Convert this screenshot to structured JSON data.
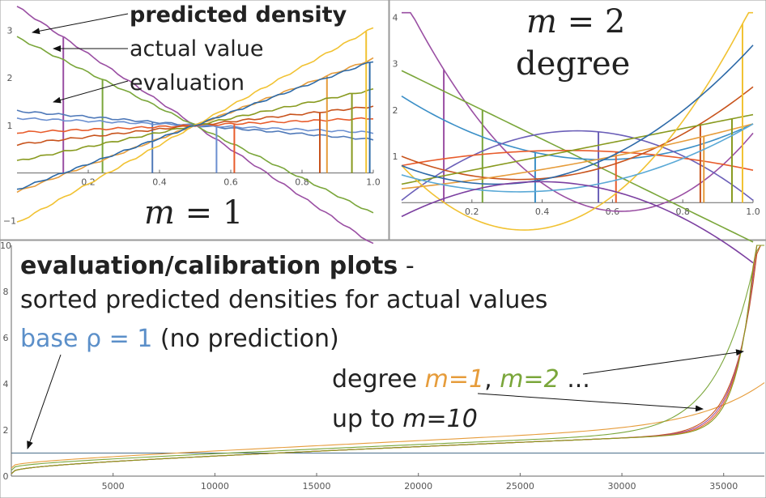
{
  "chart_data": [
    {
      "type": "line",
      "title": "m = 1",
      "title_var": "m",
      "title_rest": " = 1",
      "xlim": [
        0,
        1
      ],
      "ylim": [
        -1.3,
        3.6
      ],
      "xticks": [
        "0.2",
        "0.4",
        "0.6",
        "0.8",
        "1.0"
      ],
      "yticks": [
        "−1",
        "1",
        "2",
        "3"
      ],
      "annotations": [
        "predicted density",
        "actual value",
        "evaluation"
      ],
      "series": [
        {
          "color": "#9a4fa3",
          "x": [
            0,
            1
          ],
          "y": [
            3.5,
            -1.5
          ],
          "actual": 0.13
        },
        {
          "color": "#7aa63a",
          "x": [
            0,
            1
          ],
          "y": [
            2.85,
            -0.85
          ],
          "actual": 0.24
        },
        {
          "color": "#4f79b9",
          "x": [
            0,
            1
          ],
          "y": [
            1.3,
            0.7
          ],
          "actual": 0.38
        },
        {
          "color": "#6b8fd0",
          "x": [
            0,
            1
          ],
          "y": [
            1.15,
            0.85
          ],
          "actual": 0.56
        },
        {
          "color": "#e85c2c",
          "x": [
            0,
            1
          ],
          "y": [
            0.85,
            1.15
          ],
          "actual": 0.61
        },
        {
          "color": "#c8531c",
          "x": [
            0,
            1
          ],
          "y": [
            0.6,
            1.4
          ],
          "actual": 0.85
        },
        {
          "color": "#e69c3b",
          "x": [
            0,
            1
          ],
          "y": [
            -0.4,
            2.4
          ],
          "actual": 0.87
        },
        {
          "color": "#889a1f",
          "x": [
            0,
            1
          ],
          "y": [
            0.25,
            1.75
          ],
          "actual": 0.94
        },
        {
          "color": "#f1c232",
          "x": [
            0,
            1
          ],
          "y": [
            -1.05,
            3.05
          ],
          "actual": 0.98
        },
        {
          "color": "#2d6aa8",
          "x": [
            0,
            1
          ],
          "y": [
            -0.35,
            2.35
          ],
          "actual": 0.99
        }
      ]
    },
    {
      "type": "line",
      "title_line1": "m = 2",
      "title_var": "m",
      "title_rest": " = 2",
      "title_line2": "degree",
      "xlim": [
        0,
        1
      ],
      "ylim": [
        -0.8,
        4.2
      ],
      "xticks": [
        "0.2",
        "0.4",
        "0.6",
        "0.8",
        "1.0"
      ],
      "yticks": [
        "1",
        "2",
        "3",
        "4"
      ],
      "series": [
        {
          "color": "#9a4fa3",
          "coef": [
            4.5,
            -15,
            12
          ],
          "actual": 0.12
        },
        {
          "color": "#7aa63a",
          "coef": [
            2.85,
            -3.7,
            0
          ],
          "actual": 0.23
        },
        {
          "color": "#3b8fc7",
          "coef": [
            2.3,
            -4.8,
            4.2
          ],
          "actual": 0.38
        },
        {
          "color": "#6b5fb8",
          "coef": [
            0.05,
            6,
            -6
          ],
          "actual": 0.56
        },
        {
          "color": "#e85c2c",
          "coef": [
            0.8,
            1.4,
            -1.5
          ],
          "actual": 0.61
        },
        {
          "color": "#c8531c",
          "coef": [
            1.0,
            -3,
            4.5
          ],
          "actual": 0.85
        },
        {
          "color": "#e69c3b",
          "coef": [
            0.3,
            0.8,
            0.6
          ],
          "actual": 0.86
        },
        {
          "color": "#889a1f",
          "coef": [
            0.4,
            1.5,
            0
          ],
          "actual": 0.94
        },
        {
          "color": "#f1c232",
          "coef": [
            0.8,
            -8,
            11.5
          ],
          "actual": 0.97
        },
        {
          "color": "#2d6aa8",
          "coef": [
            0.8,
            -3,
            5.6
          ],
          "actual": 0.0
        },
        {
          "color": "#5aa9d6",
          "coef": [
            0.6,
            -2.2,
            3.3
          ],
          "actual": 0.0
        },
        {
          "color": "#7b3fa0",
          "coef": [
            -0.3,
            3.8,
            -4.8
          ],
          "actual": 0.0
        }
      ]
    },
    {
      "type": "line",
      "title": "evaluation/calibration plots",
      "title_suffix": " -",
      "subtitle": "sorted predicted densities for actual values",
      "xlim": [
        0,
        37000
      ],
      "ylim": [
        0,
        10
      ],
      "xticks": [
        "5000",
        "10000",
        "15000",
        "20000",
        "25000",
        "30000",
        "35000"
      ],
      "yticks": [
        "0",
        "2",
        "4",
        "6",
        "8",
        "10"
      ],
      "labels": {
        "base": "base ρ = 1",
        "base_rest": " (no prediction)",
        "degree_word": "degree ",
        "m1": "m=1",
        "comma": ", ",
        "m2": "m=2",
        "ellipsis": " ...",
        "upto": "up to ",
        "m10": "m=10"
      },
      "colors": {
        "base": "#5b8fc9",
        "m1": "#e69c3b",
        "m2": "#7aa63a",
        "dark": "#222222"
      },
      "series": [
        {
          "name": "base",
          "color": "#4a6f8a",
          "kind": "flat"
        },
        {
          "color": "#e69c3b",
          "kind": "m1"
        },
        {
          "color": "#7aa63a",
          "kind": "m2"
        },
        {
          "color": "#c8531c",
          "kind": "high"
        },
        {
          "color": "#9a4fa3",
          "kind": "high"
        },
        {
          "color": "#e85c2c",
          "kind": "high"
        },
        {
          "color": "#889a1f",
          "kind": "high"
        }
      ]
    }
  ]
}
